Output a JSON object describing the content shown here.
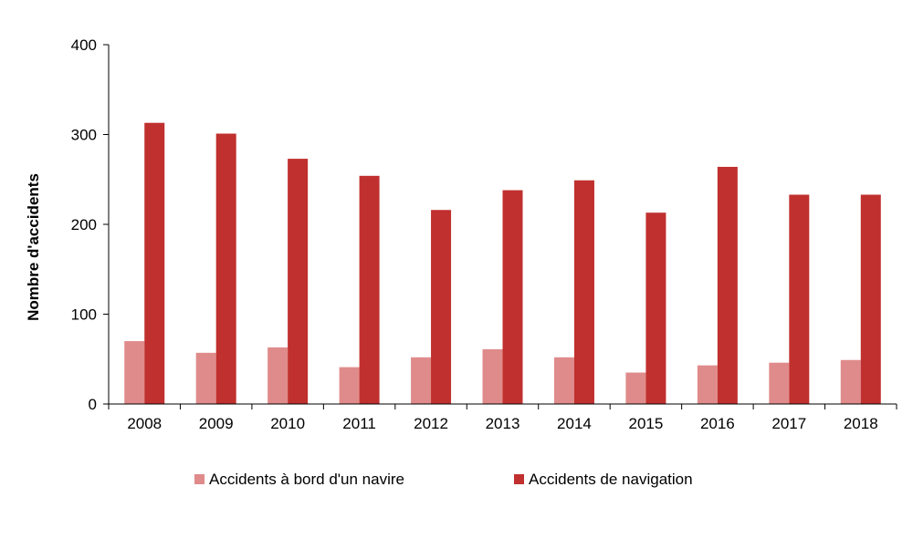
{
  "chart_data": {
    "type": "bar",
    "categories": [
      "2008",
      "2009",
      "2010",
      "2011",
      "2012",
      "2013",
      "2014",
      "2015",
      "2016",
      "2017",
      "2018"
    ],
    "series": [
      {
        "name": "Accidents à bord d'un navire",
        "color": "#e08b8b",
        "values": [
          70,
          57,
          63,
          41,
          52,
          61,
          52,
          35,
          43,
          46,
          49
        ]
      },
      {
        "name": "Accidents de navigation",
        "color": "#c0302e",
        "values": [
          313,
          301,
          273,
          254,
          216,
          238,
          249,
          213,
          264,
          233,
          233
        ]
      }
    ],
    "title": "",
    "xlabel": "",
    "ylabel": "Nombre d'accidents",
    "ylim": [
      0,
      400
    ],
    "yticks": [
      0,
      100,
      200,
      300,
      400
    ],
    "grid": false,
    "legend_position": "bottom"
  }
}
